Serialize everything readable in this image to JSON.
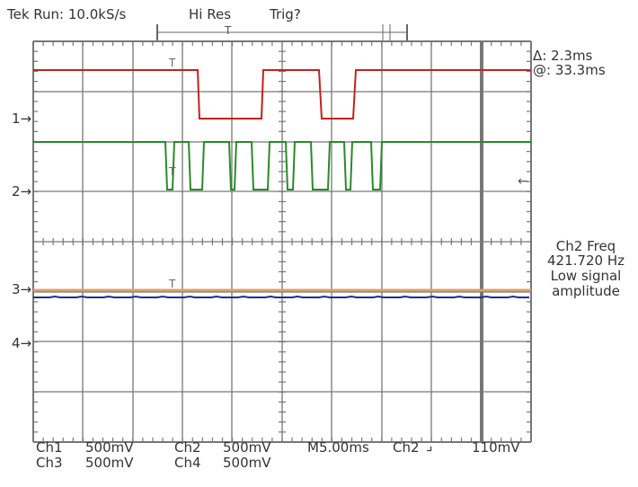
{
  "header": {
    "run_status": "Tek Run: 10.0kS/s",
    "acq_mode": "Hi Res",
    "trigger_status": "Trig?"
  },
  "cursors": {
    "delta": "Δ: 2.3ms",
    "at": "@: 33.3ms"
  },
  "measurement": {
    "line1": "Ch2 Freq",
    "line2": "421.720 Hz",
    "line3": "Low signal",
    "line4": "amplitude"
  },
  "channel_markers": [
    "1",
    "2",
    "3",
    "4"
  ],
  "footer": {
    "ch1": "Ch1",
    "ch1_scale": "500mV",
    "ch2": "Ch2",
    "ch2_scale": "500mV",
    "ch3": "Ch3",
    "ch3_scale": "500mV",
    "ch4": "Ch4",
    "ch4_scale": "500mV",
    "timebase": "M5.00ms",
    "trigger_source": "Ch2",
    "trigger_level": "110mV"
  },
  "colors": {
    "ch1": "#c0231e",
    "ch2": "#2a8a2a",
    "ch3": "#1e2f8a",
    "ch4": "#d9a070",
    "grid": "#777777"
  }
}
